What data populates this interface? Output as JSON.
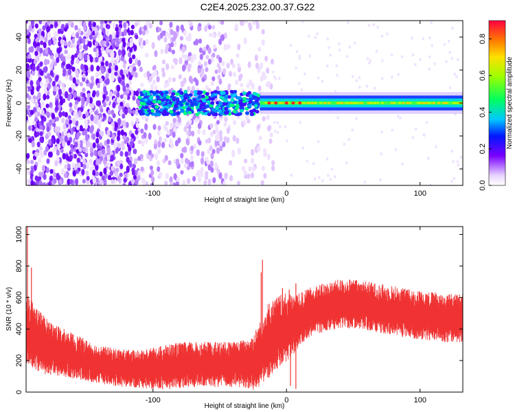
{
  "title": "C2E4.2025.232.00.37.G22",
  "chart_data": [
    {
      "type": "heatmap",
      "name": "spectrogram",
      "xlabel": "Height of straight line (km)",
      "ylabel": "Frequency (Hz)",
      "xlim": [
        -195,
        132
      ],
      "ylim": [
        -50,
        50
      ],
      "xticks": [
        -100,
        0,
        100
      ],
      "xtick_labels": [
        "-100",
        "0",
        "100"
      ],
      "yticks": [
        -40,
        -20,
        0,
        20,
        40
      ],
      "ytick_labels": [
        "-40",
        "-20",
        "0",
        "20",
        "40"
      ],
      "colorbar": {
        "label": "Normalized spectral amplitude",
        "range": [
          0.0,
          0.9
        ],
        "ticks": [
          0.0,
          0.2,
          0.4,
          0.6,
          0.8
        ],
        "tick_labels": [
          "0.0",
          "0.2",
          "0.4",
          "0.6",
          "0.8"
        ]
      },
      "features": {
        "noise_region_x": [
          -195,
          -10
        ],
        "signal_band_start_x": -110,
        "coherent_band_start_x": -20,
        "band_center_hz": 0,
        "band_halfwidth_hz": 3,
        "peak_points_x": [
          -13,
          -8,
          0,
          5,
          10
        ]
      }
    },
    {
      "type": "line",
      "name": "snr",
      "xlabel": "Height of straight line (km)",
      "ylabel": "SNR (10 * v/v)",
      "xlim": [
        -195,
        132
      ],
      "ylim": [
        0,
        1050
      ],
      "xticks": [
        -100,
        0,
        100
      ],
      "xtick_labels": [
        "-100",
        "0",
        "100"
      ],
      "yticks": [
        0,
        200,
        400,
        600,
        800,
        1000
      ],
      "ytick_labels": [
        "0",
        "200",
        "400",
        "600",
        "800",
        "1000"
      ],
      "color": "#f03232",
      "series": [
        {
          "name": "snr",
          "x": [
            -195,
            -190,
            -180,
            -170,
            -160,
            -150,
            -140,
            -130,
            -120,
            -110,
            -100,
            -90,
            -80,
            -70,
            -60,
            -50,
            -40,
            -30,
            -25,
            -20,
            -18,
            -15,
            -10,
            -5,
            0,
            5,
            10,
            20,
            30,
            40,
            50,
            60,
            70,
            80,
            90,
            100,
            110,
            120,
            132
          ],
          "mean": [
            420,
            360,
            290,
            260,
            230,
            200,
            175,
            160,
            150,
            145,
            150,
            160,
            170,
            175,
            175,
            175,
            175,
            180,
            190,
            240,
            270,
            320,
            350,
            390,
            410,
            430,
            460,
            520,
            540,
            560,
            560,
            550,
            530,
            520,
            500,
            490,
            480,
            470,
            470
          ],
          "spread": [
            200,
            180,
            150,
            130,
            120,
            110,
            100,
            100,
            100,
            100,
            110,
            120,
            120,
            120,
            120,
            120,
            120,
            130,
            150,
            170,
            180,
            200,
            200,
            190,
            180,
            160,
            140,
            130,
            130,
            130,
            130,
            130,
            130,
            130,
            130,
            130,
            130,
            130,
            130
          ]
        }
      ],
      "spikes": [
        {
          "x": -194,
          "y": 1050
        },
        {
          "x": -191,
          "y": 790
        },
        {
          "x": -18,
          "y": 840
        },
        {
          "x": -19,
          "y": 760
        },
        {
          "x": -3,
          "y": 660
        },
        {
          "x": 2,
          "y": 650
        },
        {
          "x": 7,
          "y": 690
        }
      ],
      "dips": [
        {
          "x": 3,
          "y": 40
        },
        {
          "x": 7,
          "y": 20
        }
      ]
    }
  ]
}
